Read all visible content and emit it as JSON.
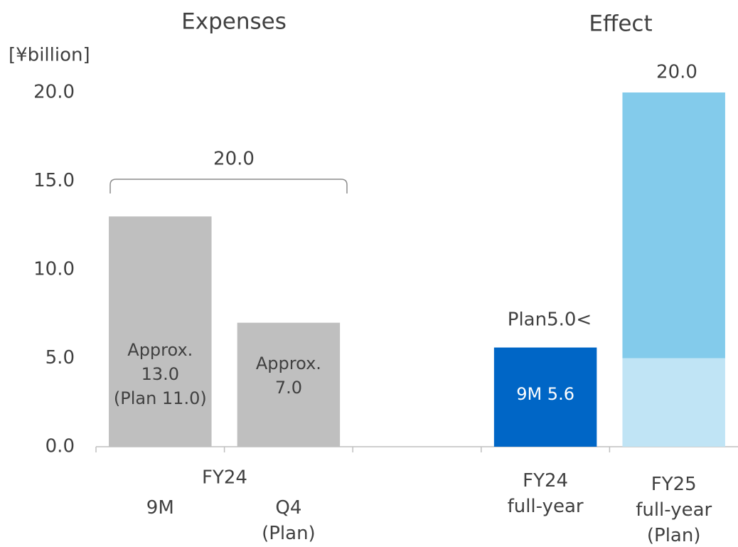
{
  "chart_data": {
    "type": "bar",
    "stacked": true,
    "unit_label": "[¥billion]",
    "group_titles": [
      "Expenses",
      "Effect"
    ],
    "group_label": "FY24",
    "categories": [
      "9M",
      "Q4\n(Plan)",
      null,
      "FY24\nfull-year",
      "FY25\nfull-year\n(Plan)"
    ],
    "series": [
      {
        "color": "#bfbfbf",
        "values": [
          13.0,
          7.0,
          null,
          null,
          null
        ],
        "value_labels": [
          "Approx.\n13.0\n(Plan 11.0)",
          "Approx.\n7.0",
          null,
          null,
          null
        ]
      },
      {
        "color": "#0066c6",
        "values": [
          null,
          null,
          null,
          5.6,
          null
        ],
        "value_labels": [
          null,
          null,
          null,
          "9M 5.6",
          null
        ]
      },
      {
        "color": "#c0e4f5",
        "values": [
          null,
          null,
          null,
          null,
          5.0
        ]
      },
      {
        "color": "#83cbeb",
        "values": [
          null,
          null,
          null,
          null,
          15.0
        ]
      }
    ],
    "ylim": [
      0,
      20
    ],
    "yticks": [
      {
        "value": 0,
        "label": "0.0"
      },
      {
        "value": 5,
        "label": "5.0"
      },
      {
        "value": 10,
        "label": "10.0"
      },
      {
        "value": 15,
        "label": "15.0"
      },
      {
        "value": 20,
        "label": "20.0"
      }
    ],
    "annotations": [
      "20.0",
      "Plan5.0<",
      "20.0"
    ]
  }
}
